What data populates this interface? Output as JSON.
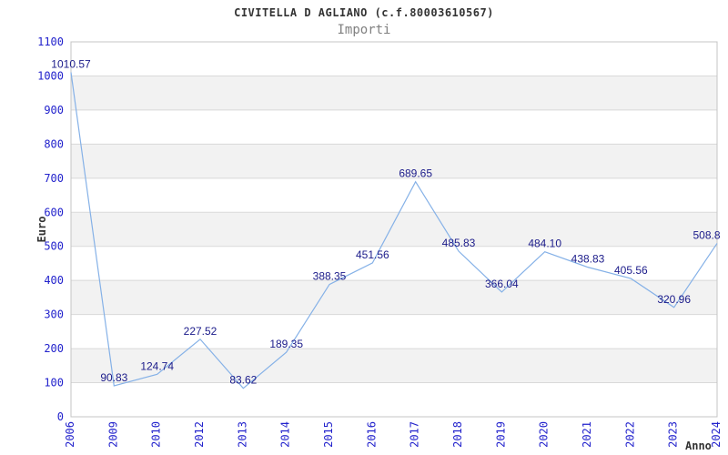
{
  "header": {
    "title": "CIVITELLA D AGLIANO (c.f.80003610567)",
    "subtitle": "Importi"
  },
  "chart_data": {
    "type": "line",
    "title": "Importi",
    "categories": [
      "2006",
      "2009",
      "2010",
      "2012",
      "2013",
      "2014",
      "2015",
      "2016",
      "2017",
      "2018",
      "2019",
      "2020",
      "2021",
      "2022",
      "2023",
      "2024"
    ],
    "values": [
      1010.57,
      90.83,
      124.74,
      227.52,
      83.62,
      189.35,
      388.35,
      451.56,
      689.65,
      485.83,
      366.04,
      484.1,
      438.83,
      405.56,
      320.96,
      508.8
    ],
    "point_labels": [
      "1010.57",
      "90.83",
      "124.74",
      "227.52",
      "83.62",
      "189.35",
      "388.35",
      "451.56",
      "689.65",
      "485.83",
      "366.04",
      "484.10",
      "438.83",
      "405.56",
      "320.96",
      "508.8"
    ],
    "series_name": "Importi",
    "xlabel": "Anno",
    "ylabel": "Euro",
    "ylim": [
      0,
      1100
    ],
    "ytick_step": 100,
    "grid": true,
    "legend": "none",
    "band_style": "alternating-horizontal",
    "colors": {
      "line": "#85b1e7",
      "tick_label": "#2222cc",
      "data_label": "#1b1b8a",
      "band": "#f2f2f2",
      "grid": "#d9d9d9",
      "border": "#c4c4c4",
      "title": "#333333",
      "subtitle": "#808080",
      "axis_title": "#333333",
      "background": "#ffffff"
    }
  }
}
